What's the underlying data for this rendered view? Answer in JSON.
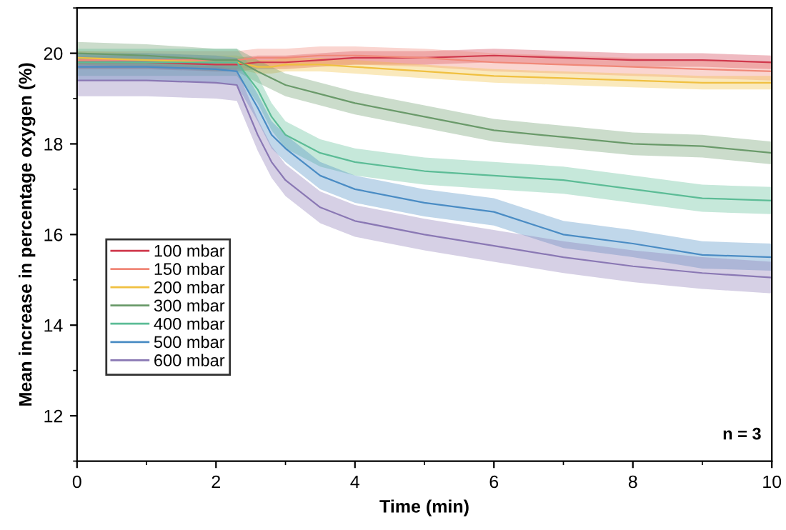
{
  "chart_data": {
    "type": "line",
    "xlabel": "Time (min)",
    "ylabel": "Mean increase in percentage oxygen (%)",
    "x": [
      0,
      1,
      2,
      2.3,
      2.6,
      2.8,
      3,
      3.5,
      4,
      5,
      6,
      7,
      8,
      9,
      10
    ],
    "xlim": [
      0,
      10
    ],
    "xticks": [
      0,
      2,
      4,
      6,
      8,
      10
    ],
    "ylim": [
      11,
      21
    ],
    "yticks": [
      12,
      14,
      16,
      18,
      20
    ],
    "grid": false,
    "legend": "left",
    "annotations": [
      "n = 3"
    ],
    "series": [
      {
        "name": "100 mbar",
        "color": "#d0384c",
        "values": [
          19.8,
          19.8,
          19.75,
          19.75,
          19.8,
          19.8,
          19.8,
          19.85,
          19.9,
          19.9,
          19.95,
          19.9,
          19.85,
          19.85,
          19.8
        ],
        "lower": [
          19.65,
          19.65,
          19.6,
          19.6,
          19.65,
          19.65,
          19.65,
          19.7,
          19.75,
          19.75,
          19.8,
          19.75,
          19.7,
          19.7,
          19.65
        ],
        "upper": [
          19.95,
          19.95,
          19.9,
          19.9,
          19.95,
          19.95,
          19.95,
          20.0,
          20.05,
          20.05,
          20.1,
          20.05,
          20.0,
          20.0,
          19.95
        ]
      },
      {
        "name": "150 mbar",
        "color": "#f08878",
        "values": [
          19.85,
          19.85,
          19.85,
          19.85,
          19.9,
          19.9,
          19.9,
          19.95,
          19.95,
          19.9,
          19.8,
          19.75,
          19.7,
          19.65,
          19.6
        ],
        "lower": [
          19.65,
          19.65,
          19.65,
          19.65,
          19.7,
          19.7,
          19.7,
          19.75,
          19.75,
          19.7,
          19.6,
          19.55,
          19.5,
          19.45,
          19.4
        ],
        "upper": [
          20.05,
          20.05,
          20.05,
          20.05,
          20.1,
          20.1,
          20.1,
          20.15,
          20.15,
          20.1,
          20.0,
          19.95,
          19.9,
          19.85,
          19.8
        ]
      },
      {
        "name": "200 mbar",
        "color": "#f0c040",
        "values": [
          19.9,
          19.85,
          19.8,
          19.8,
          19.7,
          19.7,
          19.75,
          19.75,
          19.7,
          19.6,
          19.5,
          19.45,
          19.4,
          19.35,
          19.35
        ],
        "lower": [
          19.75,
          19.7,
          19.65,
          19.65,
          19.55,
          19.55,
          19.6,
          19.6,
          19.55,
          19.45,
          19.35,
          19.3,
          19.25,
          19.2,
          19.2
        ],
        "upper": [
          20.05,
          20.0,
          19.95,
          19.95,
          19.85,
          19.85,
          19.9,
          19.9,
          19.85,
          19.75,
          19.65,
          19.6,
          19.55,
          19.5,
          19.5
        ]
      },
      {
        "name": "300 mbar",
        "color": "#6a9a6a",
        "values": [
          20.0,
          19.95,
          19.85,
          19.85,
          19.6,
          19.45,
          19.3,
          19.1,
          18.9,
          18.6,
          18.3,
          18.15,
          18.0,
          17.95,
          17.8
        ],
        "lower": [
          19.75,
          19.7,
          19.6,
          19.6,
          19.35,
          19.2,
          19.05,
          18.85,
          18.65,
          18.35,
          18.05,
          17.9,
          17.75,
          17.7,
          17.55
        ],
        "upper": [
          20.25,
          20.2,
          20.1,
          20.1,
          19.85,
          19.7,
          19.55,
          19.35,
          19.15,
          18.85,
          18.55,
          18.4,
          18.25,
          18.2,
          18.05
        ]
      },
      {
        "name": "400 mbar",
        "color": "#5cbc96",
        "values": [
          19.8,
          19.8,
          19.8,
          19.8,
          19.2,
          18.6,
          18.2,
          17.8,
          17.6,
          17.4,
          17.3,
          17.2,
          17.0,
          16.8,
          16.75
        ],
        "lower": [
          19.5,
          19.5,
          19.5,
          19.5,
          18.9,
          18.3,
          17.9,
          17.5,
          17.3,
          17.1,
          17.0,
          16.9,
          16.7,
          16.5,
          16.45
        ],
        "upper": [
          20.1,
          20.1,
          20.1,
          20.1,
          19.5,
          18.9,
          18.5,
          18.1,
          17.9,
          17.7,
          17.6,
          17.5,
          17.3,
          17.1,
          17.05
        ]
      },
      {
        "name": "500 mbar",
        "color": "#4a8cc4",
        "values": [
          19.7,
          19.7,
          19.65,
          19.6,
          18.8,
          18.2,
          17.9,
          17.3,
          17.0,
          16.7,
          16.5,
          16.0,
          15.8,
          15.55,
          15.5
        ],
        "lower": [
          19.4,
          19.4,
          19.35,
          19.3,
          18.5,
          17.9,
          17.6,
          17.0,
          16.7,
          16.4,
          16.2,
          15.7,
          15.5,
          15.25,
          15.2
        ],
        "upper": [
          20.0,
          20.0,
          19.95,
          19.9,
          19.1,
          18.5,
          18.2,
          17.6,
          17.3,
          17.0,
          16.8,
          16.3,
          16.1,
          15.85,
          15.8
        ]
      },
      {
        "name": "600 mbar",
        "color": "#8a78b4",
        "values": [
          19.4,
          19.4,
          19.35,
          19.3,
          18.2,
          17.6,
          17.2,
          16.6,
          16.3,
          16.0,
          15.75,
          15.5,
          15.3,
          15.15,
          15.05
        ],
        "lower": [
          19.05,
          19.05,
          19.0,
          18.95,
          17.85,
          17.25,
          16.85,
          16.25,
          15.95,
          15.65,
          15.4,
          15.15,
          14.95,
          14.8,
          14.7
        ],
        "upper": [
          19.75,
          19.75,
          19.7,
          19.65,
          18.55,
          17.95,
          17.55,
          16.95,
          16.65,
          16.35,
          16.1,
          15.85,
          15.65,
          15.5,
          15.4
        ]
      }
    ]
  }
}
